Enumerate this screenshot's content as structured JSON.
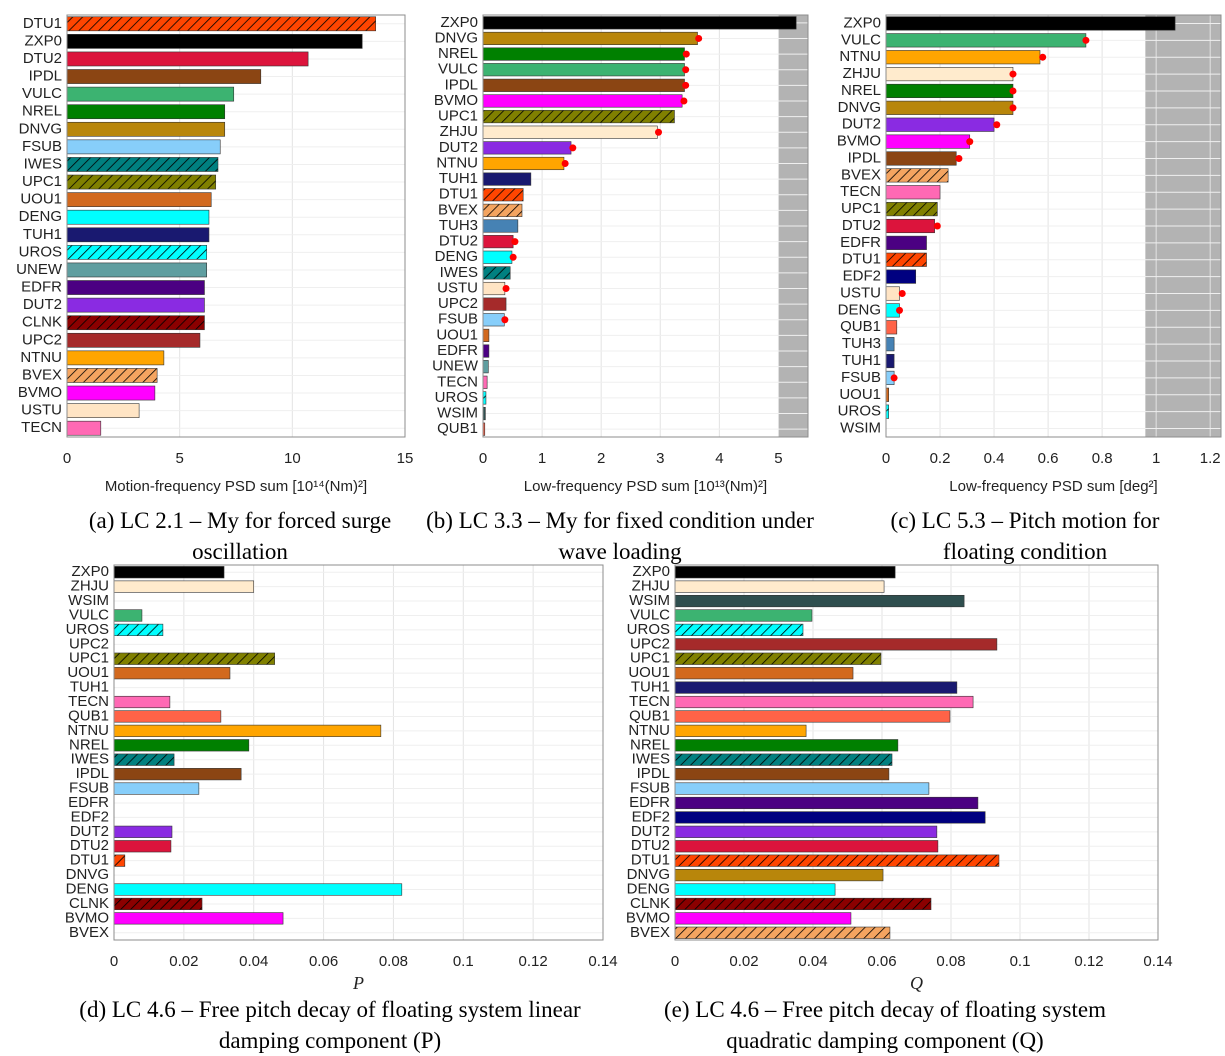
{
  "chart_data": [
    {
      "type": "bar",
      "orientation": "horizontal",
      "categories": [
        "DTU1",
        "ZXP0",
        "DTU2",
        "IPDL",
        "VULC",
        "NREL",
        "DNVG",
        "FSUB",
        "IWES",
        "UPC1",
        "UOU1",
        "DENG",
        "TUH1",
        "UROS",
        "UNEW",
        "EDFR",
        "DUT2",
        "CLNK",
        "UPC2",
        "NTNU",
        "BVEX",
        "BVMO",
        "USTU",
        "TECN"
      ],
      "values": [
        13.7,
        13.1,
        10.7,
        8.6,
        7.4,
        7.0,
        7.0,
        6.8,
        6.7,
        6.6,
        6.4,
        6.3,
        6.3,
        6.2,
        6.2,
        6.1,
        6.1,
        6.1,
        5.9,
        4.3,
        4.0,
        3.9,
        3.2,
        1.5
      ],
      "colors": [
        "#ff4500",
        "#000000",
        "#dc143c",
        "#8b4513",
        "#3cb371",
        "#008000",
        "#b8860b",
        "#87cefa",
        "#008080",
        "#808000",
        "#d2691e",
        "#00ffff",
        "#191970",
        "#00ffff",
        "#5f9ea0",
        "#4b0082",
        "#8a2be2",
        "#8b0000",
        "#a52a2a",
        "#ffa500",
        "#f4a460",
        "#ff00ff",
        "#ffe4c4",
        "#ff69b4"
      ],
      "hatch": [
        true,
        false,
        false,
        false,
        false,
        false,
        false,
        false,
        true,
        true,
        false,
        false,
        false,
        true,
        false,
        false,
        false,
        true,
        false,
        false,
        true,
        false,
        false,
        false
      ],
      "xlim": [
        0,
        15
      ],
      "xticks": [
        0,
        5,
        10,
        15
      ],
      "grid": true,
      "xlabel": "Motion-frequency PSD sum [10¹⁴(Nm)²]",
      "caption": "(a) LC 2.1 – My for forced surge oscillation"
    },
    {
      "type": "bar",
      "orientation": "horizontal",
      "categories": [
        "ZXP0",
        "DNVG",
        "NREL",
        "VULC",
        "IPDL",
        "BVMO",
        "UPC1",
        "ZHJU",
        "DUT2",
        "NTNU",
        "TUH1",
        "DTU1",
        "BVEX",
        "TUH3",
        "DTU2",
        "DENG",
        "IWES",
        "USTU",
        "UPC2",
        "FSUB",
        "UOU1",
        "EDFR",
        "UNEW",
        "TECN",
        "UROS",
        "WSIM",
        "QUB1"
      ],
      "values": [
        5.3,
        3.63,
        3.41,
        3.41,
        3.41,
        3.37,
        3.24,
        2.95,
        1.49,
        1.37,
        0.81,
        0.68,
        0.66,
        0.59,
        0.51,
        0.49,
        0.46,
        0.37,
        0.39,
        0.36,
        0.1,
        0.1,
        0.09,
        0.07,
        0.05,
        0.04,
        0.03
      ],
      "colors": [
        "#000000",
        "#b8860b",
        "#008000",
        "#3cb371",
        "#8b4513",
        "#ff00ff",
        "#808000",
        "#ffebcd",
        "#8a2be2",
        "#ffa500",
        "#191970",
        "#ff4500",
        "#f4a460",
        "#4682b4",
        "#dc143c",
        "#00ffff",
        "#008080",
        "#ffe4c4",
        "#a52a2a",
        "#87cefa",
        "#d2691e",
        "#4b0082",
        "#5f9ea0",
        "#ff69b4",
        "#00ffff",
        "#2f4f4f",
        "#ff6347"
      ],
      "hatch": [
        false,
        false,
        false,
        false,
        false,
        false,
        true,
        false,
        false,
        false,
        false,
        true,
        true,
        false,
        false,
        false,
        true,
        false,
        false,
        false,
        false,
        false,
        false,
        false,
        true,
        false,
        false
      ],
      "marker_values": [
        null,
        3.65,
        3.44,
        3.43,
        3.43,
        3.4,
        null,
        2.97,
        1.52,
        1.39,
        null,
        null,
        null,
        null,
        0.54,
        0.51,
        null,
        0.39,
        null,
        0.37,
        null,
        null,
        null,
        null,
        null,
        null,
        null
      ],
      "marker_color": "#ff0000",
      "shade": [
        5,
        5.5
      ],
      "xlim": [
        0,
        5.5
      ],
      "xticks": [
        0,
        1,
        2,
        3,
        4,
        5
      ],
      "grid": true,
      "xlabel": "Low-frequency PSD sum [10¹³(Nm)²]",
      "caption": "(b) LC 3.3 – My for fixed condition under wave loading"
    },
    {
      "type": "bar",
      "orientation": "horizontal",
      "categories": [
        "ZXP0",
        "VULC",
        "NTNU",
        "ZHJU",
        "NREL",
        "DNVG",
        "DUT2",
        "BVMO",
        "IPDL",
        "BVEX",
        "TECN",
        "UPC1",
        "DTU2",
        "EDFR",
        "DTU1",
        "EDF2",
        "USTU",
        "DENG",
        "QUB1",
        "TUH3",
        "TUH1",
        "FSUB",
        "UOU1",
        "UROS",
        "WSIM"
      ],
      "values": [
        1.07,
        0.74,
        0.57,
        0.47,
        0.47,
        0.47,
        0.4,
        0.31,
        0.26,
        0.23,
        0.2,
        0.19,
        0.18,
        0.15,
        0.15,
        0.11,
        0.05,
        0.05,
        0.04,
        0.03,
        0.03,
        0.03,
        0.01,
        0.01,
        0
      ],
      "colors": [
        "#000000",
        "#3cb371",
        "#ffa500",
        "#ffebcd",
        "#008000",
        "#b8860b",
        "#8a2be2",
        "#ff00ff",
        "#8b4513",
        "#f4a460",
        "#ff69b4",
        "#808000",
        "#dc143c",
        "#4b0082",
        "#ff4500",
        "#000080",
        "#ffe4c4",
        "#00ffff",
        "#ff6347",
        "#4682b4",
        "#191970",
        "#87cefa",
        "#d2691e",
        "#00ffff",
        "#2f4f4f"
      ],
      "hatch": [
        false,
        false,
        false,
        false,
        false,
        false,
        false,
        false,
        false,
        true,
        false,
        true,
        false,
        false,
        true,
        false,
        false,
        false,
        false,
        false,
        false,
        false,
        false,
        true,
        false
      ],
      "marker_values": [
        null,
        0.74,
        0.58,
        0.47,
        0.47,
        0.47,
        0.41,
        0.31,
        0.27,
        null,
        null,
        null,
        0.19,
        null,
        null,
        null,
        0.06,
        0.05,
        null,
        null,
        null,
        0.03,
        null,
        null,
        null
      ],
      "marker_color": "#ff0000",
      "shade": [
        0.96,
        1.24
      ],
      "xlim": [
        0,
        1.24
      ],
      "xticks": [
        0,
        0.2,
        0.4,
        0.6,
        0.8,
        1,
        1.2
      ],
      "grid": true,
      "xlabel": "Low-frequency PSD sum [deg²]",
      "caption": "(c) LC 5.3 – Pitch motion for floating condition"
    },
    {
      "type": "bar",
      "orientation": "horizontal",
      "categories": [
        "ZXP0",
        "ZHJU",
        "WSIM",
        "VULC",
        "UROS",
        "UPC2",
        "UPC1",
        "UOU1",
        "TUH1",
        "TECN",
        "QUB1",
        "NTNU",
        "NREL",
        "IWES",
        "IPDL",
        "FSUB",
        "EDFR",
        "EDF2",
        "DUT2",
        "DTU2",
        "DTU1",
        "DNVG",
        "DENG",
        "CLNK",
        "BVMO",
        "BVEX"
      ],
      "values": [
        0.0315,
        0.04,
        0,
        0.008,
        0.014,
        0,
        0.046,
        0.0332,
        0,
        0.016,
        0.0306,
        0.0764,
        0.0386,
        0.0172,
        0.0364,
        0.0243,
        0,
        0,
        0.0166,
        0.0163,
        0.0031,
        0,
        0.0824,
        0.0252,
        0.0484,
        0
      ],
      "colors": [
        "#000000",
        "#ffebcd",
        "#2f4f4f",
        "#3cb371",
        "#00ffff",
        "#a52a2a",
        "#808000",
        "#d2691e",
        "#191970",
        "#ff69b4",
        "#ff6347",
        "#ffa500",
        "#008000",
        "#008080",
        "#8b4513",
        "#87cefa",
        "#4b0082",
        "#000080",
        "#8a2be2",
        "#dc143c",
        "#ff4500",
        "#b8860b",
        "#00ffff",
        "#8b0000",
        "#ff00ff",
        "#f4a460"
      ],
      "hatch": [
        false,
        false,
        false,
        false,
        true,
        false,
        true,
        false,
        false,
        false,
        false,
        false,
        false,
        true,
        false,
        false,
        false,
        false,
        false,
        false,
        true,
        false,
        false,
        true,
        false,
        true
      ],
      "xlim": [
        0,
        0.14
      ],
      "xticks": [
        0,
        0.02,
        0.04,
        0.06,
        0.08,
        0.1,
        0.12,
        0.14
      ],
      "grid": true,
      "xlabel": "P",
      "caption": "(d) LC 4.6 – Free pitch decay of floating system linear damping component (P)"
    },
    {
      "type": "bar",
      "orientation": "horizontal",
      "categories": [
        "ZXP0",
        "ZHJU",
        "WSIM",
        "VULC",
        "UROS",
        "UPC2",
        "UPC1",
        "UOU1",
        "TUH1",
        "TECN",
        "QUB1",
        "NTNU",
        "NREL",
        "IWES",
        "IPDL",
        "FSUB",
        "EDFR",
        "EDF2",
        "DUT2",
        "DTU2",
        "DTU1",
        "DNVG",
        "DENG",
        "CLNK",
        "BVMO",
        "BVEX"
      ],
      "values": [
        0.0638,
        0.0606,
        0.0838,
        0.0397,
        0.0371,
        0.0933,
        0.0597,
        0.0516,
        0.0817,
        0.0864,
        0.0797,
        0.038,
        0.0646,
        0.0629,
        0.062,
        0.0736,
        0.0878,
        0.0899,
        0.0759,
        0.0762,
        0.0939,
        0.0603,
        0.0464,
        0.0742,
        0.051,
        0.0623
      ],
      "colors": [
        "#000000",
        "#ffebcd",
        "#2f4f4f",
        "#3cb371",
        "#00ffff",
        "#a52a2a",
        "#808000",
        "#d2691e",
        "#191970",
        "#ff69b4",
        "#ff6347",
        "#ffa500",
        "#008000",
        "#008080",
        "#8b4513",
        "#87cefa",
        "#4b0082",
        "#000080",
        "#8a2be2",
        "#dc143c",
        "#ff4500",
        "#b8860b",
        "#00ffff",
        "#8b0000",
        "#ff00ff",
        "#f4a460"
      ],
      "hatch": [
        false,
        false,
        false,
        false,
        true,
        false,
        true,
        false,
        false,
        false,
        false,
        false,
        false,
        true,
        false,
        false,
        false,
        false,
        false,
        false,
        true,
        false,
        false,
        true,
        false,
        true
      ],
      "xlim": [
        0,
        0.14
      ],
      "xticks": [
        0,
        0.02,
        0.04,
        0.06,
        0.08,
        0.1,
        0.12,
        0.14
      ],
      "grid": true,
      "xlabel": "Q",
      "caption": "(e) LC 4.6 – Free pitch decay of floating system quadratic damping component (Q)"
    }
  ]
}
